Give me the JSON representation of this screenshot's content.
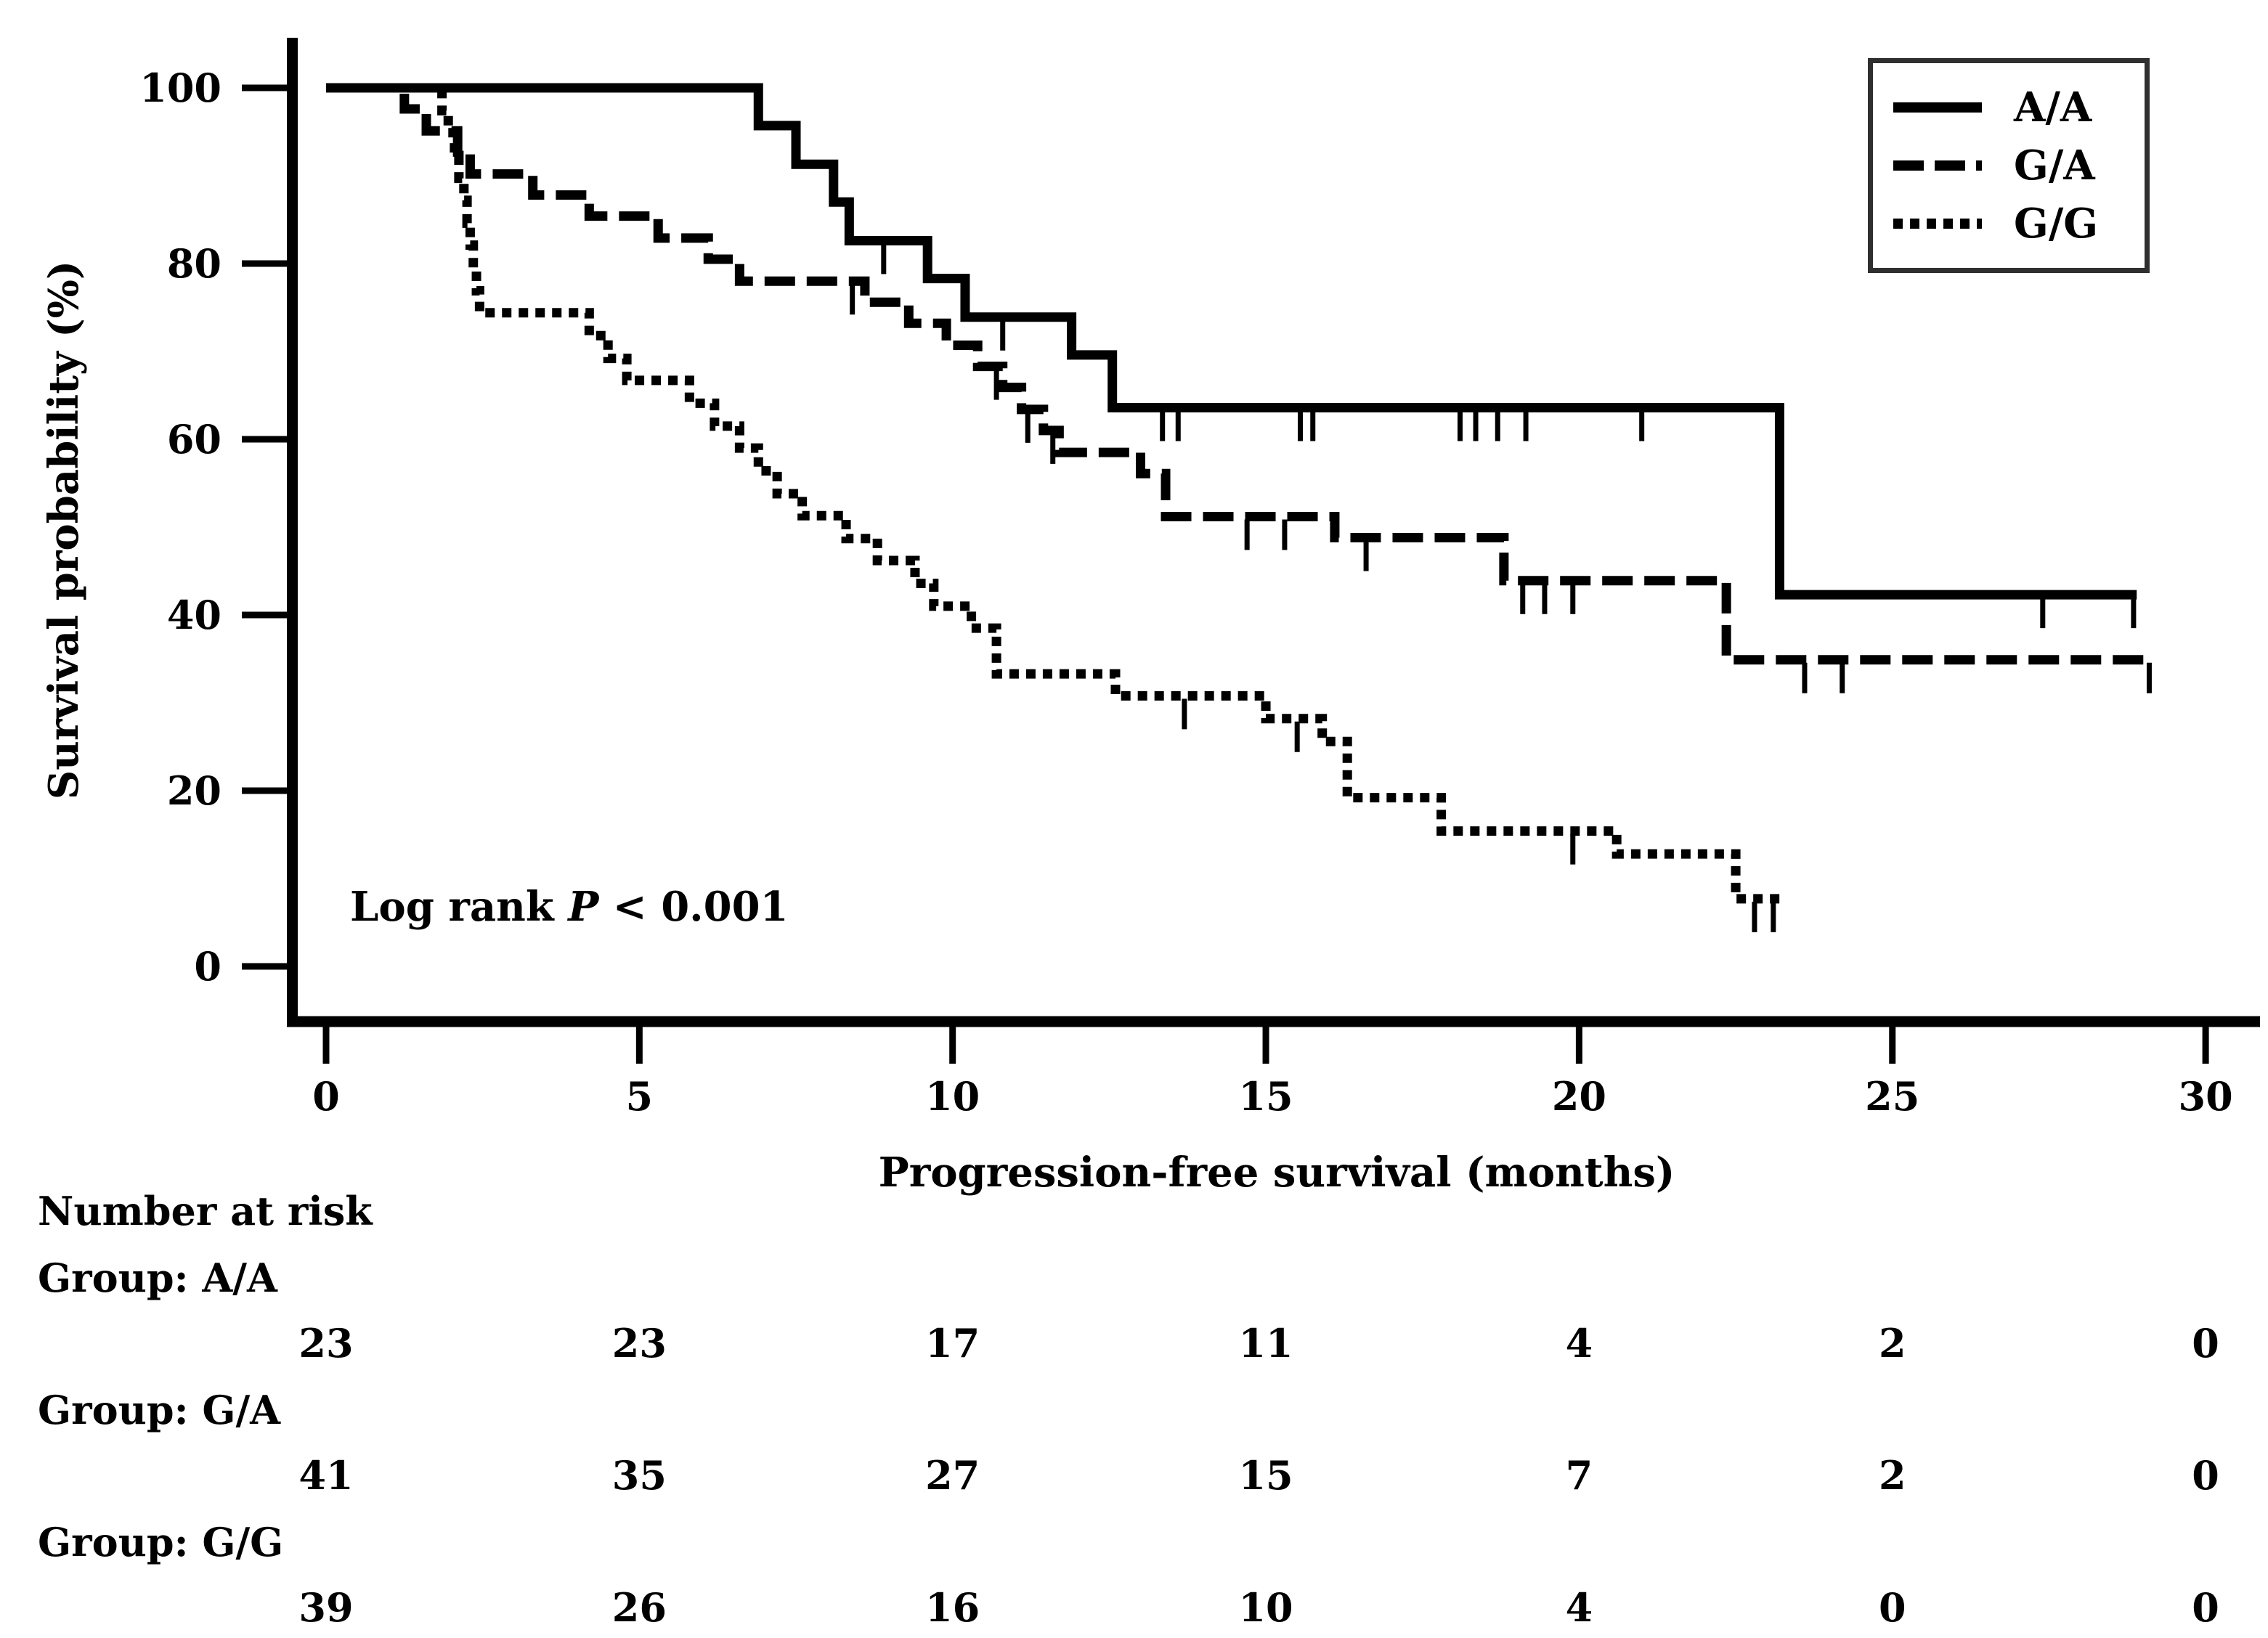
{
  "chart_data": {
    "type": "line",
    "subtype": "kaplan-meier-step",
    "xlabel": "Progression-free survival (months)",
    "ylabel": "Survival probability (%)",
    "xlim": [
      0,
      30
    ],
    "ylim": [
      0,
      100
    ],
    "x_ticks": [
      0,
      5,
      10,
      15,
      20,
      25,
      30
    ],
    "y_ticks": [
      0,
      20,
      40,
      60,
      80,
      100
    ],
    "grid": false,
    "legend_position": "top-right",
    "annotation": {
      "prefix": "Log rank ",
      "p": "P",
      "suffix": " < 0.001"
    },
    "line_color": "#000000",
    "series": [
      {
        "name": "A/A",
        "line_style": "solid",
        "points": [
          [
            0,
            100
          ],
          [
            6.9,
            95.7
          ],
          [
            7.5,
            91.3
          ],
          [
            8.1,
            87.0
          ],
          [
            8.35,
            82.6
          ],
          [
            9.6,
            78.3
          ],
          [
            10.2,
            73.9
          ],
          [
            11.9,
            69.6
          ],
          [
            12.55,
            63.6
          ],
          [
            23.2,
            42.3
          ]
        ],
        "end_time": 28.9,
        "censor_times": [
          8.9,
          10.8,
          13.35,
          13.6,
          15.55,
          15.75,
          18.1,
          18.35,
          18.7,
          19.15,
          21.0,
          27.4,
          28.85
        ]
      },
      {
        "name": "G/A",
        "line_style": "dashed",
        "points": [
          [
            0,
            100
          ],
          [
            1.25,
            97.6
          ],
          [
            1.6,
            95.1
          ],
          [
            2.1,
            92.7
          ],
          [
            2.3,
            90.2
          ],
          [
            3.3,
            87.8
          ],
          [
            4.2,
            85.4
          ],
          [
            5.3,
            82.9
          ],
          [
            6.1,
            80.5
          ],
          [
            6.6,
            78.0
          ],
          [
            8.6,
            75.6
          ],
          [
            9.3,
            73.2
          ],
          [
            9.9,
            70.7
          ],
          [
            10.4,
            68.3
          ],
          [
            10.8,
            65.9
          ],
          [
            11.1,
            63.4
          ],
          [
            11.45,
            61.0
          ],
          [
            11.7,
            58.5
          ],
          [
            13.0,
            56.1
          ],
          [
            13.4,
            51.2
          ],
          [
            16.1,
            48.8
          ],
          [
            18.8,
            43.9
          ],
          [
            22.35,
            34.9
          ]
        ],
        "end_time": 29.15,
        "censor_times": [
          8.4,
          10.7,
          11.2,
          11.6,
          14.7,
          15.3,
          16.6,
          19.1,
          19.45,
          19.9,
          23.6,
          24.2,
          29.1
        ]
      },
      {
        "name": "G/G",
        "line_style": "dotted",
        "points": [
          [
            0,
            100
          ],
          [
            1.85,
            97.4
          ],
          [
            1.95,
            94.9
          ],
          [
            2.05,
            92.3
          ],
          [
            2.12,
            89.7
          ],
          [
            2.2,
            87.2
          ],
          [
            2.25,
            84.6
          ],
          [
            2.3,
            82.1
          ],
          [
            2.35,
            79.5
          ],
          [
            2.4,
            76.9
          ],
          [
            2.45,
            74.4
          ],
          [
            4.2,
            71.8
          ],
          [
            4.5,
            69.2
          ],
          [
            4.8,
            66.7
          ],
          [
            5.8,
            64.1
          ],
          [
            6.2,
            61.5
          ],
          [
            6.6,
            59.0
          ],
          [
            6.9,
            56.4
          ],
          [
            7.2,
            53.8
          ],
          [
            7.6,
            51.3
          ],
          [
            8.3,
            48.7
          ],
          [
            8.8,
            46.2
          ],
          [
            9.4,
            43.6
          ],
          [
            9.7,
            41.0
          ],
          [
            10.3,
            38.5
          ],
          [
            10.7,
            33.3
          ],
          [
            12.6,
            30.8
          ],
          [
            15.0,
            28.2
          ],
          [
            15.9,
            25.6
          ],
          [
            16.3,
            19.2
          ],
          [
            17.8,
            15.4
          ],
          [
            20.6,
            12.8
          ],
          [
            22.5,
            7.7
          ]
        ],
        "end_time": 23.3,
        "censor_times": [
          13.7,
          15.5,
          19.9,
          22.8,
          23.1
        ]
      }
    ]
  },
  "risk_table": {
    "title": "Number at risk",
    "time_points": [
      0,
      5,
      10,
      15,
      20,
      25,
      30
    ],
    "groups": [
      {
        "label": "Group: A/A",
        "counts": [
          "23",
          "23",
          "17",
          "11",
          "4",
          "2",
          "0"
        ]
      },
      {
        "label": "Group: G/A",
        "counts": [
          "41",
          "35",
          "27",
          "15",
          "7",
          "2",
          "0"
        ]
      },
      {
        "label": "Group: G/G",
        "counts": [
          "39",
          "26",
          "16",
          "10",
          "4",
          "0",
          "0"
        ]
      }
    ]
  },
  "colors": {
    "line": "#000000",
    "background": "#ffffff",
    "legend_border": "#2f2f2f"
  }
}
